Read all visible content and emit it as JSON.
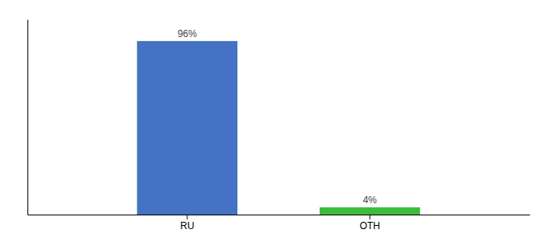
{
  "chart_data": {
    "type": "bar",
    "categories": [
      "RU",
      "OTH"
    ],
    "values": [
      96,
      4
    ],
    "value_labels": [
      "96%",
      "4%"
    ],
    "colors": [
      "#4472c4",
      "#3dbb3d"
    ],
    "ylim": [
      0,
      108
    ],
    "yticks": [],
    "data_labels": true,
    "tick_labels": "x",
    "grid": false
  }
}
